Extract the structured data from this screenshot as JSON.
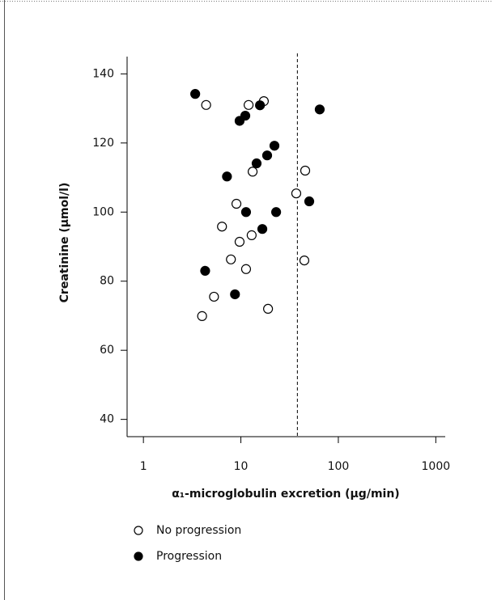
{
  "chart_data": {
    "type": "scatter",
    "x_label": "α₁-microglobulin excretion (µg/min)",
    "y_label": "Creatinine (µmol/l)",
    "x_log": true,
    "xlim": [
      0.68,
      1250
    ],
    "xticks": [
      1,
      10,
      100,
      1000
    ],
    "ylim": [
      35,
      145
    ],
    "yticks": [
      40,
      60,
      80,
      100,
      120,
      140
    ],
    "reference_x": 38,
    "legend": "bottom-left",
    "series": [
      {
        "name": "No progression",
        "color": "#000000",
        "filled": false,
        "x": [
          4.4,
          12.0,
          17.2,
          13.2,
          45.7,
          37,
          9.0,
          6.4,
          12.9,
          9.7,
          7.9,
          44.8,
          11.3,
          5.3,
          19.0,
          4.0
        ],
        "values": [
          131,
          131,
          132.1,
          111.7,
          112,
          105.4,
          102.4,
          95.8,
          93.3,
          91.4,
          86.3,
          86.0,
          83.5,
          75.5,
          72,
          69.9
        ]
      },
      {
        "name": "Progression",
        "color": "#000000",
        "filled": true,
        "x": [
          3.4,
          64.4,
          15.7,
          11.1,
          9.7,
          22.1,
          18.6,
          14.5,
          7.2,
          50.3,
          11.3,
          23.0,
          16.6,
          4.3,
          8.7
        ],
        "values": [
          134.2,
          129.7,
          130.9,
          127.9,
          126.4,
          119.2,
          116.4,
          114.1,
          110.3,
          103.1,
          100,
          100,
          95.1,
          83,
          76.2
        ]
      }
    ]
  }
}
